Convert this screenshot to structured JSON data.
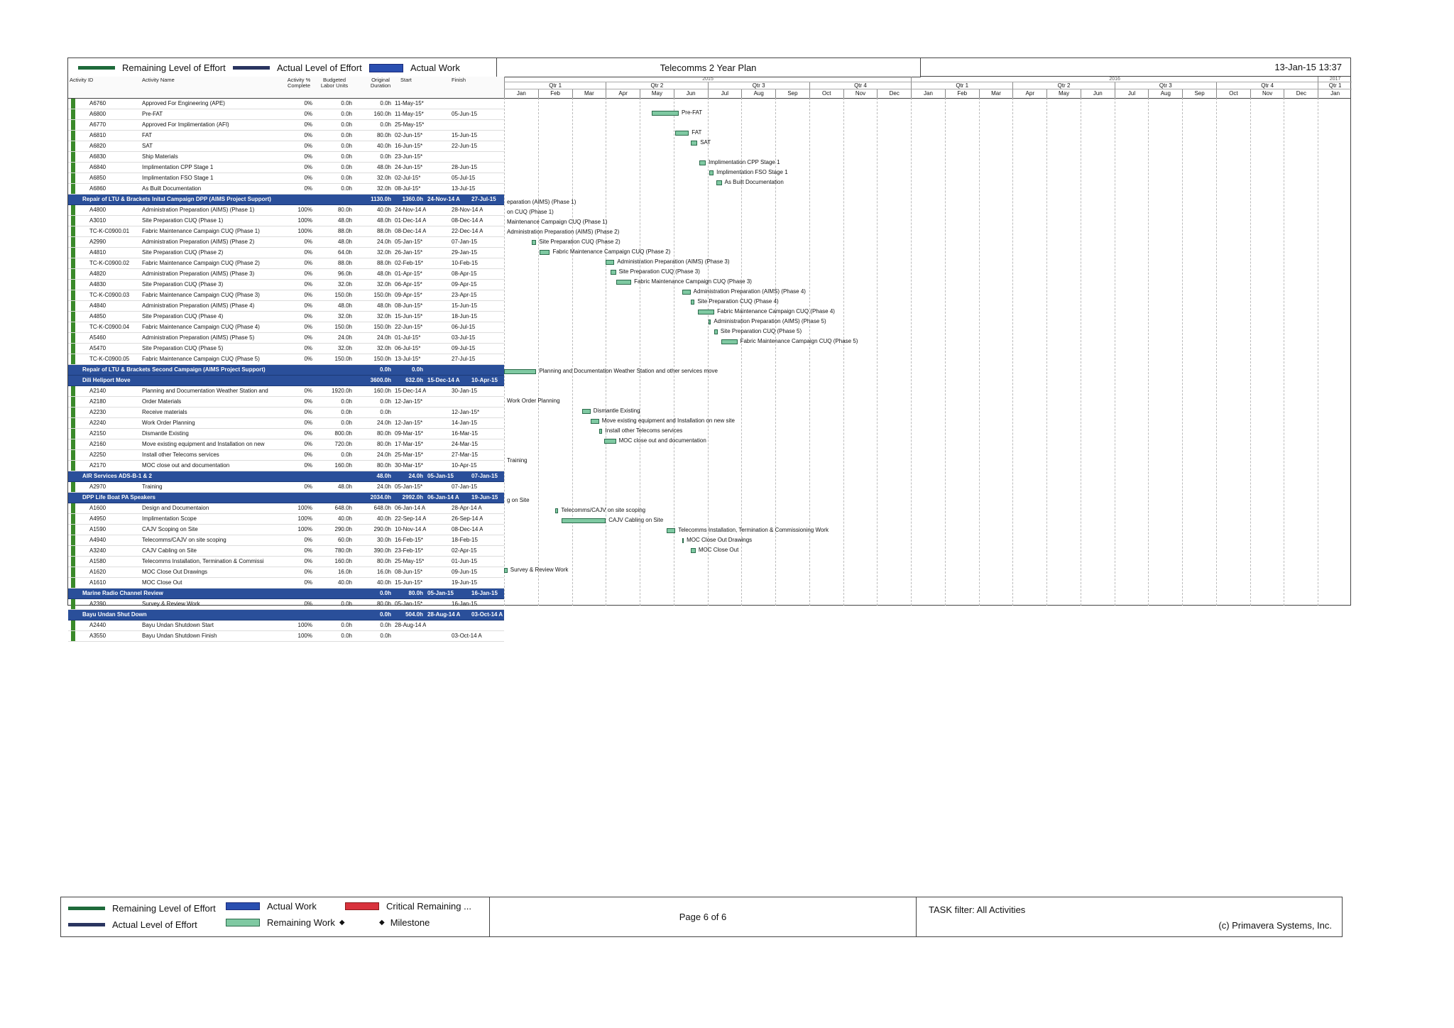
{
  "header": {
    "legend": {
      "remaining_loe": "Remaining Level of Effort",
      "actual_loe": "Actual Level of Effort",
      "actual_work": "Actual Work"
    },
    "title": "Telecomms 2 Year Plan",
    "datetime": "13-Jan-15 13:37"
  },
  "columns": {
    "activity_id": "Activity ID",
    "activity_name": "Activity Name",
    "pct_complete": "Activity % Complete",
    "budgeted_labor": "Budgeted Labor Units",
    "original_duration": "Original Duration",
    "start": "Start",
    "finish": "Finish"
  },
  "timeline": {
    "years": [
      "2015",
      "2016",
      "2017"
    ],
    "quarters": [
      "Qtr 1",
      "Qtr 2",
      "Qtr 3",
      "Qtr 4",
      "Qtr 1",
      "Qtr 2",
      "Qtr 3",
      "Qtr 4",
      "Qtr 1"
    ],
    "months": [
      "Jan",
      "Feb",
      "Mar",
      "Apr",
      "May",
      "Jun",
      "Jul",
      "Aug",
      "Sep",
      "Oct",
      "Nov",
      "Dec",
      "Jan",
      "Feb",
      "Mar",
      "Apr",
      "May",
      "Jun",
      "Jul",
      "Aug",
      "Sep",
      "Oct",
      "Nov",
      "Dec",
      "Jan"
    ]
  },
  "rows": [
    {
      "type": "task",
      "id": "A6760",
      "name": "Approved For Engineering (APE)",
      "pct": "0%",
      "units": "0.0h",
      "dur": "0.0h",
      "start": "11-May-15*",
      "finish": "",
      "bar": null
    },
    {
      "type": "task",
      "id": "A6800",
      "name": "Pre-FAT",
      "pct": "0%",
      "units": "0.0h",
      "dur": "160.0h",
      "start": "11-May-15*",
      "finish": "05-Jun-15",
      "bar": {
        "s": 4.35,
        "e": 5.15,
        "label": "Pre-FAT"
      }
    },
    {
      "type": "task",
      "id": "A6770",
      "name": "Approved For Implimentation (AFI)",
      "pct": "0%",
      "units": "0.0h",
      "dur": "0.0h",
      "start": "25-May-15*",
      "finish": "",
      "bar": null
    },
    {
      "type": "task",
      "id": "A6810",
      "name": "FAT",
      "pct": "0%",
      "units": "0.0h",
      "dur": "80.0h",
      "start": "02-Jun-15*",
      "finish": "15-Jun-15",
      "bar": {
        "s": 5.05,
        "e": 5.45,
        "label": "FAT"
      }
    },
    {
      "type": "task",
      "id": "A6820",
      "name": "SAT",
      "pct": "0%",
      "units": "0.0h",
      "dur": "40.0h",
      "start": "16-Jun-15*",
      "finish": "22-Jun-15",
      "bar": {
        "s": 5.5,
        "e": 5.7,
        "label": "SAT"
      }
    },
    {
      "type": "task",
      "id": "A6830",
      "name": "Ship Materials",
      "pct": "0%",
      "units": "0.0h",
      "dur": "0.0h",
      "start": "23-Jun-15*",
      "finish": "",
      "bar": null
    },
    {
      "type": "task",
      "id": "A6840",
      "name": "Implimentation CPP Stage 1",
      "pct": "0%",
      "units": "0.0h",
      "dur": "48.0h",
      "start": "24-Jun-15*",
      "finish": "28-Jun-15",
      "bar": {
        "s": 5.75,
        "e": 5.95,
        "label": "Implimentation CPP Stage 1"
      }
    },
    {
      "type": "task",
      "id": "A6850",
      "name": "Implimentation FSO Stage 1",
      "pct": "0%",
      "units": "0.0h",
      "dur": "32.0h",
      "start": "02-Jul-15*",
      "finish": "05-Jul-15",
      "bar": {
        "s": 6.05,
        "e": 6.18,
        "label": "Implimentation FSO Stage 1"
      }
    },
    {
      "type": "task",
      "id": "A6860",
      "name": "As Built Documentation",
      "pct": "0%",
      "units": "0.0h",
      "dur": "32.0h",
      "start": "08-Jul-15*",
      "finish": "13-Jul-15",
      "bar": {
        "s": 6.25,
        "e": 6.42,
        "label": "As Built Documentation"
      }
    },
    {
      "type": "group",
      "id": "Repair of LTU & Brackets Inital Campaign DPP (AIMS Project Support)",
      "units": "1130.0h",
      "dur": "1360.0h",
      "start": "24-Nov-14 A",
      "finish": "27-Jul-15"
    },
    {
      "type": "task",
      "id": "A4800",
      "name": "Administration Preparation (AIMS) (Phase 1)",
      "pct": "100%",
      "units": "80.0h",
      "dur": "40.0h",
      "start": "24-Nov-14 A",
      "finish": "28-Nov-14 A",
      "bar": {
        "s": 0,
        "e": 0,
        "label": "eparation (AIMS) (Phase 1)"
      }
    },
    {
      "type": "task",
      "id": "A3010",
      "name": "Site Preparation CUQ (Phase 1)",
      "pct": "100%",
      "units": "48.0h",
      "dur": "48.0h",
      "start": "01-Dec-14 A",
      "finish": "08-Dec-14 A",
      "bar": {
        "s": 0,
        "e": 0,
        "label": "on CUQ (Phase 1)"
      }
    },
    {
      "type": "task",
      "id": "TC-K-C0900.01",
      "name": "Fabric Maintenance Campaign CUQ (Phase 1)",
      "pct": "100%",
      "units": "88.0h",
      "dur": "88.0h",
      "start": "08-Dec-14 A",
      "finish": "22-Dec-14 A",
      "bar": {
        "s": 0,
        "e": 0,
        "label": "Maintenance Campaign CUQ (Phase 1)"
      }
    },
    {
      "type": "task",
      "id": "A2990",
      "name": "Administration Preparation (AIMS) (Phase 2)",
      "pct": "0%",
      "units": "48.0h",
      "dur": "24.0h",
      "start": "05-Jan-15*",
      "finish": "07-Jan-15",
      "bar": {
        "s": 0,
        "e": 0,
        "label": "Administration Preparation (AIMS) (Phase 2)"
      }
    },
    {
      "type": "task",
      "id": "A4810",
      "name": "Site Preparation CUQ (Phase 2)",
      "pct": "0%",
      "units": "64.0h",
      "dur": "32.0h",
      "start": "26-Jan-15*",
      "finish": "29-Jan-15",
      "bar": {
        "s": 0.82,
        "e": 0.95,
        "label": "Site Preparation CUQ (Phase 2)"
      }
    },
    {
      "type": "task",
      "id": "TC-K-C0900.02",
      "name": "Fabric Maintenance Campaign CUQ (Phase 2)",
      "pct": "0%",
      "units": "88.0h",
      "dur": "88.0h",
      "start": "02-Feb-15*",
      "finish": "10-Feb-15",
      "bar": {
        "s": 1.05,
        "e": 1.35,
        "label": "Fabric Maintenance Campaign CUQ (Phase 2)"
      }
    },
    {
      "type": "task",
      "id": "A4820",
      "name": "Administration Preparation (AIMS) (Phase 3)",
      "pct": "0%",
      "units": "96.0h",
      "dur": "48.0h",
      "start": "01-Apr-15*",
      "finish": "08-Apr-15",
      "bar": {
        "s": 3.0,
        "e": 3.25,
        "label": "Administration Preparation (AIMS) (Phase 3)"
      }
    },
    {
      "type": "task",
      "id": "A4830",
      "name": "Site Preparation CUQ (Phase 3)",
      "pct": "0%",
      "units": "32.0h",
      "dur": "32.0h",
      "start": "06-Apr-15*",
      "finish": "09-Apr-15",
      "bar": {
        "s": 3.15,
        "e": 3.3,
        "label": "Site Preparation CUQ (Phase 3)"
      }
    },
    {
      "type": "task",
      "id": "TC-K-C0900.03",
      "name": "Fabric Maintenance Campaign CUQ (Phase 3)",
      "pct": "0%",
      "units": "150.0h",
      "dur": "150.0h",
      "start": "09-Apr-15*",
      "finish": "23-Apr-15",
      "bar": {
        "s": 3.3,
        "e": 3.75,
        "label": "Fabric Maintenance Campaign CUQ (Phase 3)"
      }
    },
    {
      "type": "task",
      "id": "A4840",
      "name": "Administration Preparation (AIMS) (Phase 4)",
      "pct": "0%",
      "units": "48.0h",
      "dur": "48.0h",
      "start": "08-Jun-15*",
      "finish": "15-Jun-15",
      "bar": {
        "s": 5.25,
        "e": 5.5,
        "label": "Administration Preparation (AIMS) (Phase 4)"
      }
    },
    {
      "type": "task",
      "id": "A4850",
      "name": "Site Preparation CUQ (Phase 4)",
      "pct": "0%",
      "units": "32.0h",
      "dur": "32.0h",
      "start": "15-Jun-15*",
      "finish": "18-Jun-15",
      "bar": {
        "s": 5.5,
        "e": 5.62,
        "label": "Site Preparation CUQ (Phase 4)"
      }
    },
    {
      "type": "task",
      "id": "TC-K-C0900.04",
      "name": "Fabric Maintenance Campaign CUQ (Phase 4)",
      "pct": "0%",
      "units": "150.0h",
      "dur": "150.0h",
      "start": "22-Jun-15*",
      "finish": "06-Jul-15",
      "bar": {
        "s": 5.72,
        "e": 6.2,
        "label": "Fabric Maintenance Campaign CUQ (Phase 4)"
      }
    },
    {
      "type": "task",
      "id": "A5460",
      "name": "Administration Preparation (AIMS) (Phase 5)",
      "pct": "0%",
      "units": "24.0h",
      "dur": "24.0h",
      "start": "01-Jul-15*",
      "finish": "03-Jul-15",
      "bar": {
        "s": 6.02,
        "e": 6.1,
        "label": "Administration Preparation (AIMS) (Phase 5)"
      }
    },
    {
      "type": "task",
      "id": "A5470",
      "name": "Site Preparation CUQ (Phase 5)",
      "pct": "0%",
      "units": "32.0h",
      "dur": "32.0h",
      "start": "06-Jul-15*",
      "finish": "09-Jul-15",
      "bar": {
        "s": 6.2,
        "e": 6.3,
        "label": "Site Preparation CUQ (Phase 5)"
      }
    },
    {
      "type": "task",
      "id": "TC-K-C0900.05",
      "name": "Fabric Maintenance Campaign CUQ (Phase 5)",
      "pct": "0%",
      "units": "150.0h",
      "dur": "150.0h",
      "start": "13-Jul-15*",
      "finish": "27-Jul-15",
      "bar": {
        "s": 6.4,
        "e": 6.88,
        "label": "Fabric Maintenance Campaign CUQ (Phase 5)"
      }
    },
    {
      "type": "group",
      "id": "Repair of LTU & Brackets Second Campaign (AIMS Project Support)",
      "units": "0.0h",
      "dur": "0.0h",
      "start": "",
      "finish": ""
    },
    {
      "type": "group",
      "id": "Dili Heliport Move",
      "units": "3600.0h",
      "dur": "632.0h",
      "start": "15-Dec-14 A",
      "finish": "10-Apr-15"
    },
    {
      "type": "task",
      "id": "A2140",
      "name": "Planning and Documentation Weather Station and",
      "pct": "0%",
      "units": "1920.0h",
      "dur": "160.0h",
      "start": "15-Dec-14 A",
      "finish": "30-Jan-15",
      "bar": {
        "s": 0,
        "e": 0.95,
        "label": "Planning and Documentation Weather Station and other services move"
      }
    },
    {
      "type": "task",
      "id": "A2180",
      "name": "Order Materials",
      "pct": "0%",
      "units": "0.0h",
      "dur": "0.0h",
      "start": "12-Jan-15*",
      "finish": "",
      "bar": null
    },
    {
      "type": "task",
      "id": "A2230",
      "name": "Receive materials",
      "pct": "0%",
      "units": "0.0h",
      "dur": "0.0h",
      "start": "",
      "finish": "12-Jan-15*",
      "bar": null
    },
    {
      "type": "task",
      "id": "A2240",
      "name": "Work Order Planning",
      "pct": "0%",
      "units": "0.0h",
      "dur": "24.0h",
      "start": "12-Jan-15*",
      "finish": "14-Jan-15",
      "bar": {
        "s": 0,
        "e": 0,
        "label": "Work Order Planning"
      }
    },
    {
      "type": "task",
      "id": "A2150",
      "name": "Dismantle Existing",
      "pct": "0%",
      "units": "800.0h",
      "dur": "80.0h",
      "start": "09-Mar-15*",
      "finish": "16-Mar-15",
      "bar": {
        "s": 2.3,
        "e": 2.55,
        "label": "Dismantle Existing"
      }
    },
    {
      "type": "task",
      "id": "A2160",
      "name": "Move existing equipment and Installation on new",
      "pct": "0%",
      "units": "720.0h",
      "dur": "80.0h",
      "start": "17-Mar-15*",
      "finish": "24-Mar-15",
      "bar": {
        "s": 2.55,
        "e": 2.8,
        "label": "Move existing equipment and Installation on new site"
      }
    },
    {
      "type": "task",
      "id": "A2250",
      "name": "Install other Telecoms services",
      "pct": "0%",
      "units": "0.0h",
      "dur": "24.0h",
      "start": "25-Mar-15*",
      "finish": "27-Mar-15",
      "bar": {
        "s": 2.8,
        "e": 2.9,
        "label": "Install other Telecoms services"
      }
    },
    {
      "type": "task",
      "id": "A2170",
      "name": "MOC close out and documentation",
      "pct": "0%",
      "units": "160.0h",
      "dur": "80.0h",
      "start": "30-Mar-15*",
      "finish": "10-Apr-15",
      "bar": {
        "s": 2.95,
        "e": 3.3,
        "label": "MOC close out and documentation"
      }
    },
    {
      "type": "group",
      "id": "AIR Services ADS-B-1 & 2",
      "units": "48.0h",
      "dur": "24.0h",
      "start": "05-Jan-15",
      "finish": "07-Jan-15"
    },
    {
      "type": "task",
      "id": "A2970",
      "name": "Training",
      "pct": "0%",
      "units": "48.0h",
      "dur": "24.0h",
      "start": "05-Jan-15*",
      "finish": "07-Jan-15",
      "bar": {
        "s": 0,
        "e": 0,
        "label": "Training"
      }
    },
    {
      "type": "group",
      "id": "DPP Life Boat PA Speakers",
      "units": "2034.0h",
      "dur": "2992.0h",
      "start": "06-Jan-14 A",
      "finish": "19-Jun-15"
    },
    {
      "type": "task",
      "id": "A1600",
      "name": "Design and Documentaion",
      "pct": "100%",
      "units": "648.0h",
      "dur": "648.0h",
      "start": "06-Jan-14 A",
      "finish": "28-Apr-14 A",
      "bar": null
    },
    {
      "type": "task",
      "id": "A4950",
      "name": "Implimentation Scope",
      "pct": "100%",
      "units": "40.0h",
      "dur": "40.0h",
      "start": "22-Sep-14 A",
      "finish": "26-Sep-14 A",
      "bar": null
    },
    {
      "type": "task",
      "id": "A1590",
      "name": "CAJV Scoping on Site",
      "pct": "100%",
      "units": "290.0h",
      "dur": "290.0h",
      "start": "10-Nov-14 A",
      "finish": "08-Dec-14 A",
      "bar": {
        "s": 0,
        "e": 0,
        "label": "g on Site"
      }
    },
    {
      "type": "task",
      "id": "A4940",
      "name": "Telecomms/CAJV on site scoping",
      "pct": "0%",
      "units": "60.0h",
      "dur": "30.0h",
      "start": "16-Feb-15*",
      "finish": "18-Feb-15",
      "bar": {
        "s": 1.5,
        "e": 1.6,
        "label": "Telecomms/CAJV on site scoping"
      }
    },
    {
      "type": "task",
      "id": "A3240",
      "name": "CAJV Cabling on Site",
      "pct": "0%",
      "units": "780.0h",
      "dur": "390.0h",
      "start": "23-Feb-15*",
      "finish": "02-Apr-15",
      "bar": {
        "s": 1.7,
        "e": 3.0,
        "label": "CAJV Cabling on Site"
      }
    },
    {
      "type": "task",
      "id": "A1580",
      "name": "Telecomms Installation, Termination & Commissi",
      "pct": "0%",
      "units": "160.0h",
      "dur": "80.0h",
      "start": "25-May-15*",
      "finish": "01-Jun-15",
      "bar": {
        "s": 4.8,
        "e": 5.05,
        "label": "Telecomms Installation, Termination & Commissioning Work"
      }
    },
    {
      "type": "task",
      "id": "A1620",
      "name": "MOC Close Out Drawings",
      "pct": "0%",
      "units": "16.0h",
      "dur": "16.0h",
      "start": "08-Jun-15*",
      "finish": "09-Jun-15",
      "bar": {
        "s": 5.25,
        "e": 5.3,
        "label": "MOC Close Out Drawings"
      }
    },
    {
      "type": "task",
      "id": "A1610",
      "name": "MOC Close Out",
      "pct": "0%",
      "units": "40.0h",
      "dur": "40.0h",
      "start": "15-Jun-15*",
      "finish": "19-Jun-15",
      "bar": {
        "s": 5.5,
        "e": 5.65,
        "label": "MOC Close Out"
      }
    },
    {
      "type": "group",
      "id": "Marine Radio Channel Review",
      "units": "0.0h",
      "dur": "80.0h",
      "start": "05-Jan-15",
      "finish": "16-Jan-15"
    },
    {
      "type": "task",
      "id": "A2390",
      "name": "Survey & Review Work",
      "pct": "0%",
      "units": "0.0h",
      "dur": "80.0h",
      "start": "05-Jan-15*",
      "finish": "16-Jan-15",
      "bar": {
        "s": 0,
        "e": 0.1,
        "label": "Survey & Review Work"
      }
    },
    {
      "type": "group",
      "id": "Bayu Undan Shut Down",
      "units": "0.0h",
      "dur": "504.0h",
      "start": "28-Aug-14 A",
      "finish": "03-Oct-14 A"
    },
    {
      "type": "task",
      "id": "A2440",
      "name": "Bayu Undan Shutdown Start",
      "pct": "100%",
      "units": "0.0h",
      "dur": "0.0h",
      "start": "28-Aug-14 A",
      "finish": "",
      "bar": null
    },
    {
      "type": "task",
      "id": "A3550",
      "name": "Bayu Undan Shutdown Finish",
      "pct": "100%",
      "units": "0.0h",
      "dur": "0.0h",
      "start": "",
      "finish": "03-Oct-14 A",
      "bar": null
    }
  ],
  "footer": {
    "legend": {
      "remaining_loe": "Remaining Level of Effort",
      "actual_work": "Actual Work",
      "critical_remaining": "Critical Remaining ...",
      "actual_loe": "Actual Level of Effort",
      "remaining_work": "Remaining Work",
      "milestone": "Milestone"
    },
    "page": "Page 6 of 6",
    "filter": "TASK filter: All Activities",
    "copyright": "(c) Primavera Systems, Inc."
  },
  "colors": {
    "group_band": "#2a4f9a",
    "remaining_work": "#7fc9a2",
    "remaining_loe": "#1e6a3a",
    "actual_loe": "#2a3560",
    "actual_work": "#2a4fb0",
    "critical_remaining": "#d8323c"
  }
}
